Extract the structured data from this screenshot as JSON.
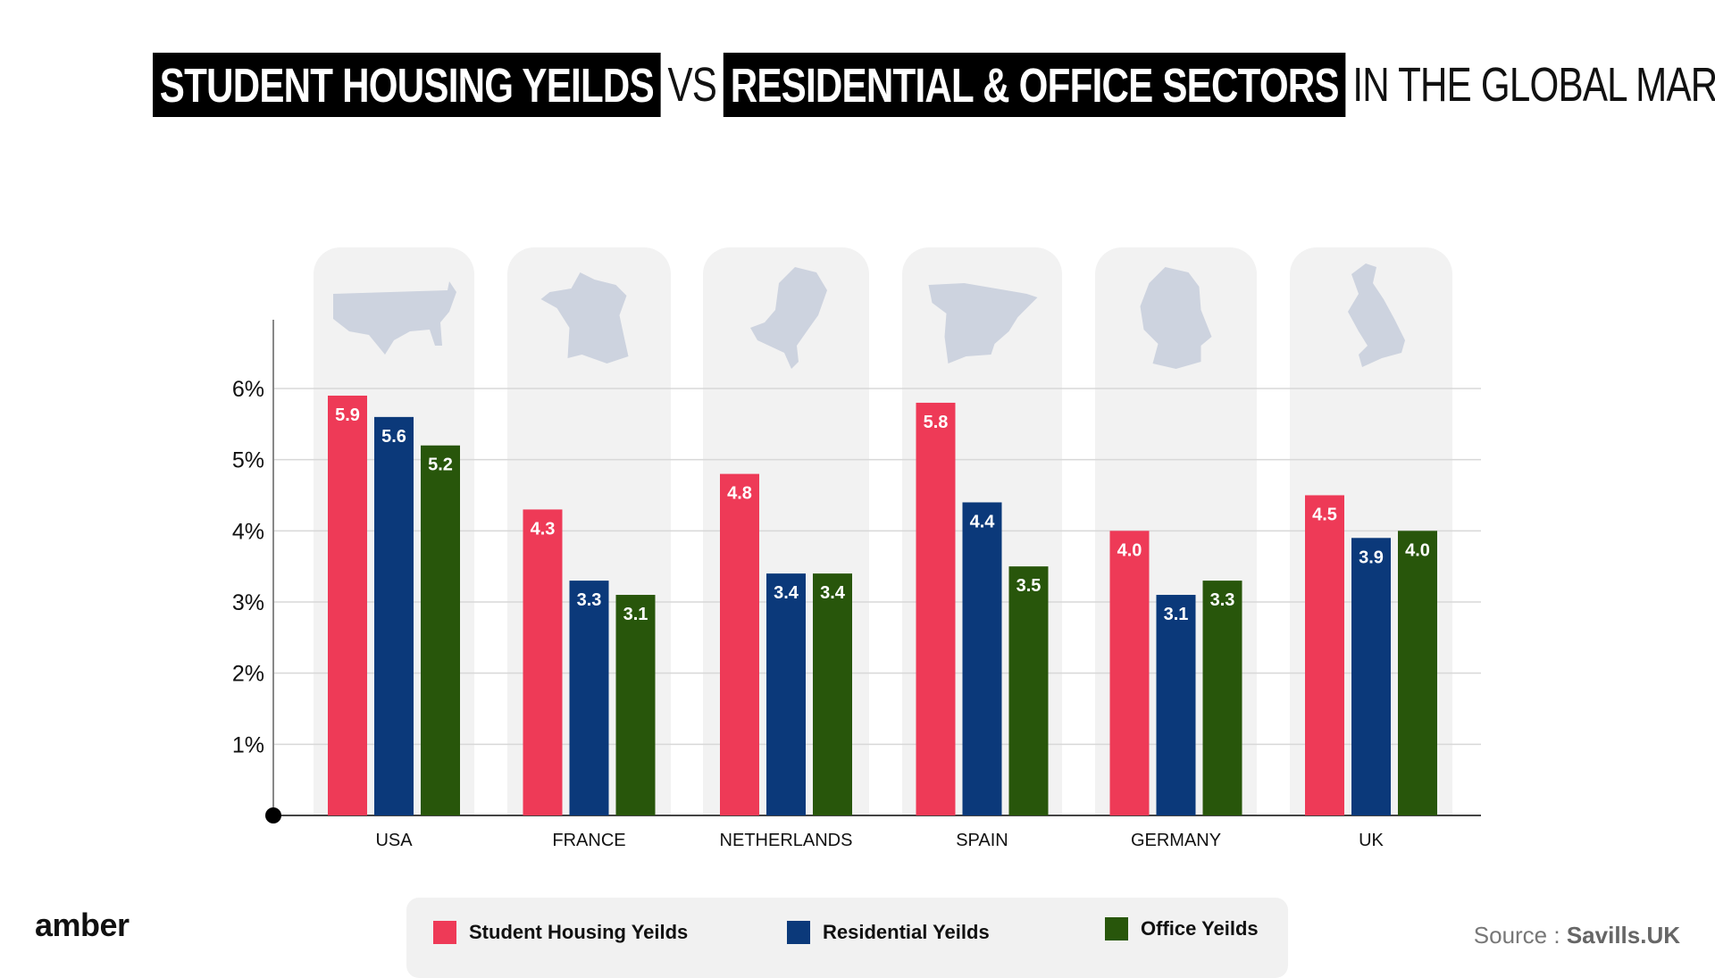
{
  "title": {
    "part1": "STUDENT HOUSING YEILDS",
    "vs": "VS",
    "part2": "RESIDENTIAL & OFFICE SECTORS",
    "part3": "IN THE GLOBAL MARKET"
  },
  "brand": "amber",
  "source": {
    "label": "Source :",
    "value": "Savills.UK"
  },
  "chart_data": {
    "type": "bar",
    "title": "STUDENT HOUSING YEILDS VS RESIDENTIAL & OFFICE SECTORS IN THE GLOBAL MARKET",
    "categories": [
      "USA",
      "FRANCE",
      "NETHERLANDS",
      "SPAIN",
      "GERMANY",
      "UK"
    ],
    "series": [
      {
        "name": "Student Housing Yeilds",
        "color": "#ee3a57",
        "values": [
          5.9,
          4.3,
          4.8,
          5.8,
          4.0,
          4.5
        ]
      },
      {
        "name": "Residential Yeilds",
        "color": "#0b397a",
        "values": [
          5.6,
          3.3,
          3.4,
          4.4,
          3.1,
          3.9
        ]
      },
      {
        "name": "Office Yeilds",
        "color": "#28560b",
        "values": [
          5.2,
          3.1,
          3.4,
          3.5,
          3.3,
          4.0
        ]
      }
    ],
    "yticks": [
      "1%",
      "2%",
      "3%",
      "4%",
      "5%",
      "6%"
    ],
    "ylim": [
      0,
      6.9
    ],
    "grid": true,
    "legend": "bottom",
    "category_icons": [
      "usa-map-icon",
      "france-map-icon",
      "netherlands-map-icon",
      "spain-map-icon",
      "germany-map-icon",
      "uk-map-icon"
    ]
  }
}
